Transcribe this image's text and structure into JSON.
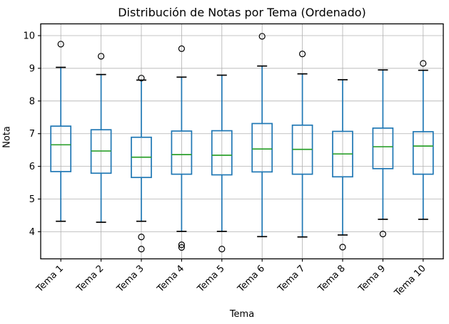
{
  "chart_data": {
    "type": "boxplot",
    "title": "Distribución de Notas por Tema (Ordenado)",
    "xlabel": "Tema",
    "ylabel": "Nota",
    "categories": [
      "Tema 1",
      "Tema 2",
      "Tema 3",
      "Tema 4",
      "Tema 5",
      "Tema 6",
      "Tema 7",
      "Tema 8",
      "Tema 9",
      "Tema 10"
    ],
    "yticks": [
      4,
      5,
      6,
      7,
      8,
      9,
      10
    ],
    "ylim": [
      3.17,
      10.36
    ],
    "grid": true,
    "legend": false,
    "boxes": [
      {
        "label": "Tema 1",
        "whisker_low": 4.32,
        "q1": 5.84,
        "median": 6.66,
        "q3": 7.23,
        "whisker_high": 9.03,
        "outliers": [
          9.74
        ]
      },
      {
        "label": "Tema 2",
        "whisker_low": 4.29,
        "q1": 5.79,
        "median": 6.47,
        "q3": 7.12,
        "whisker_high": 8.81,
        "outliers": [
          9.37
        ]
      },
      {
        "label": "Tema 3",
        "whisker_low": 4.32,
        "q1": 5.66,
        "median": 6.28,
        "q3": 6.89,
        "whisker_high": 8.64,
        "outliers": [
          8.7,
          3.84,
          3.47
        ]
      },
      {
        "label": "Tema 4",
        "whisker_low": 4.01,
        "q1": 5.76,
        "median": 6.36,
        "q3": 7.08,
        "whisker_high": 8.73,
        "outliers": [
          9.6,
          3.6,
          3.52
        ]
      },
      {
        "label": "Tema 5",
        "whisker_low": 4.01,
        "q1": 5.74,
        "median": 6.34,
        "q3": 7.09,
        "whisker_high": 8.79,
        "outliers": [
          3.47
        ]
      },
      {
        "label": "Tema 6",
        "whisker_low": 3.85,
        "q1": 5.83,
        "median": 6.53,
        "q3": 7.31,
        "whisker_high": 9.07,
        "outliers": [
          9.98
        ]
      },
      {
        "label": "Tema 7",
        "whisker_low": 3.84,
        "q1": 5.76,
        "median": 6.52,
        "q3": 7.26,
        "whisker_high": 8.83,
        "outliers": [
          9.44
        ]
      },
      {
        "label": "Tema 8",
        "whisker_low": 3.9,
        "q1": 5.68,
        "median": 6.38,
        "q3": 7.07,
        "whisker_high": 8.65,
        "outliers": [
          3.53
        ]
      },
      {
        "label": "Tema 9",
        "whisker_low": 4.38,
        "q1": 5.93,
        "median": 6.6,
        "q3": 7.17,
        "whisker_high": 8.95,
        "outliers": [
          3.93
        ]
      },
      {
        "label": "Tema 10",
        "whisker_low": 4.38,
        "q1": 5.76,
        "median": 6.62,
        "q3": 7.06,
        "whisker_high": 8.94,
        "outliers": [
          9.15
        ]
      }
    ],
    "colors": {
      "box": "#1f77b4",
      "whisker": "#1f77b4",
      "cap": "#000000",
      "median": "#2ca02c",
      "outlier": "#000000",
      "grid": "#b0b0b0",
      "axis": "#000000",
      "text": "#000000",
      "background": "#ffffff"
    }
  }
}
